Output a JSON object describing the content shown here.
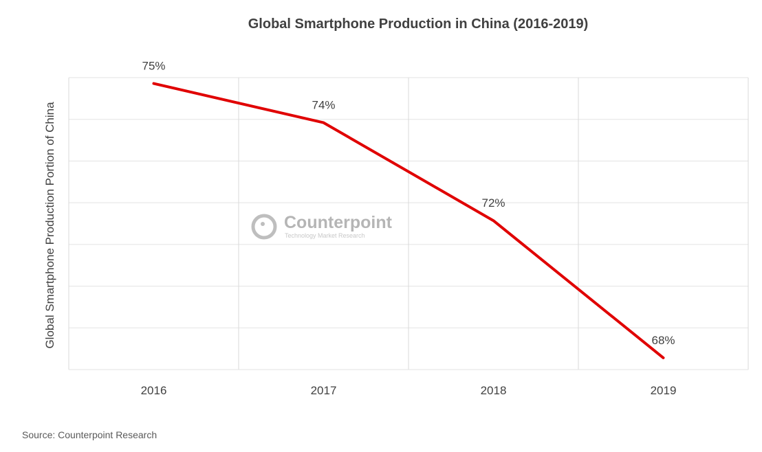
{
  "chart_data": {
    "type": "line",
    "title": "Global Smartphone Production in China (2016-2019)",
    "xlabel": "",
    "ylabel": "Global Smartphone Production Portion of China",
    "categories": [
      "2016",
      "2017",
      "2018",
      "2019"
    ],
    "series": [
      {
        "values": [
          75,
          74,
          71.5,
          68
        ],
        "labels": [
          "75%",
          "74%",
          "72%",
          "68%"
        ],
        "color": "#e00000"
      }
    ],
    "ylim": [
      67.7,
      75.15
    ],
    "grid": true,
    "legend": "none",
    "watermark": {
      "brand": "Counterpoint",
      "tagline": "Technology Market Research"
    },
    "source": "Source: Counterpoint Research"
  }
}
